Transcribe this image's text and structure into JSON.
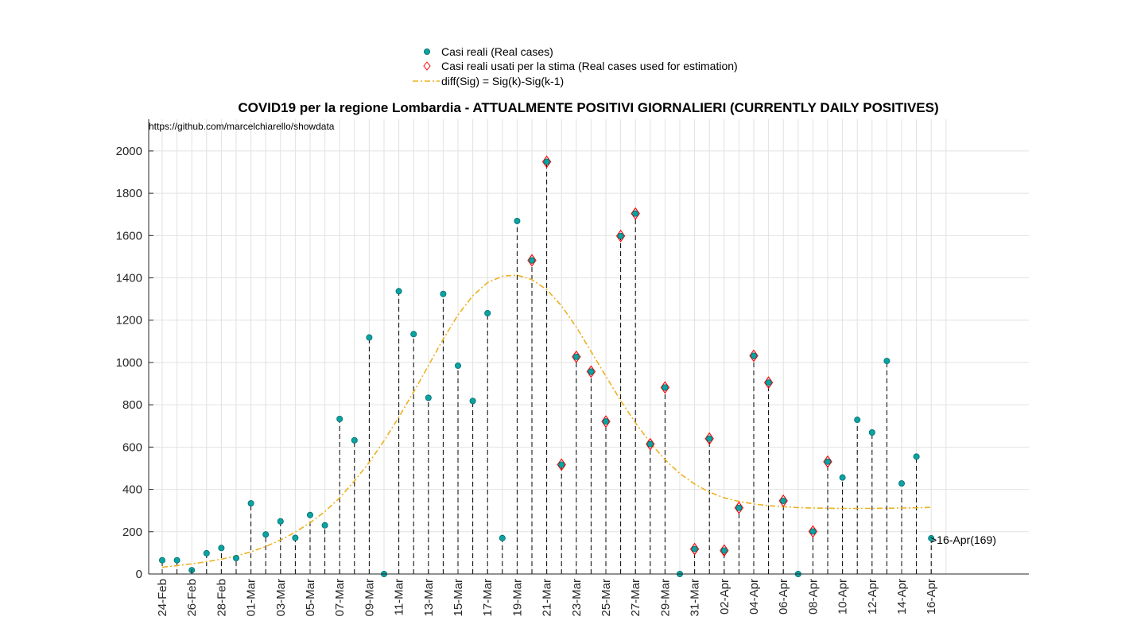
{
  "chart_data": {
    "type": "scatter",
    "title": "COVID19 per la regione Lombardia - ATTUALMENTE POSITIVI GIORNALIERI (CURRENTLY DAILY POSITIVES)",
    "source_note": "https://github.com/marcelchiarello/showdata",
    "ylim": [
      0,
      2150
    ],
    "yticks": [
      0,
      200,
      400,
      600,
      800,
      1000,
      1200,
      1400,
      1600,
      1800,
      2000
    ],
    "grid": true,
    "legend_position": "top-center",
    "legend": [
      {
        "label": "Casi reali (Real cases)",
        "marker": "dot",
        "color": "#0aa3a3"
      },
      {
        "label": "Casi reali usati per la stima (Real cases used for estimation)",
        "marker": "diamond",
        "color": "#ff0000"
      },
      {
        "label": "diff(Sig) = Sig(k)-Sig(k-1)",
        "marker": "dash-dot",
        "color": "#edb120"
      }
    ],
    "x": [
      "24-Feb",
      "25-Feb",
      "26-Feb",
      "27-Feb",
      "28-Feb",
      "29-Feb",
      "01-Mar",
      "02-Mar",
      "03-Mar",
      "04-Mar",
      "05-Mar",
      "06-Mar",
      "07-Mar",
      "08-Mar",
      "09-Mar",
      "10-Mar",
      "11-Mar",
      "12-Mar",
      "13-Mar",
      "14-Mar",
      "15-Mar",
      "16-Mar",
      "17-Mar",
      "18-Mar",
      "19-Mar",
      "20-Mar",
      "21-Mar",
      "22-Mar",
      "23-Mar",
      "24-Mar",
      "25-Mar",
      "26-Mar",
      "27-Mar",
      "28-Mar",
      "29-Mar",
      "30-Mar",
      "31-Mar",
      "01-Apr",
      "02-Apr",
      "03-Apr",
      "04-Apr",
      "05-Apr",
      "06-Apr",
      "07-Apr",
      "08-Apr",
      "09-Apr",
      "10-Apr",
      "11-Apr",
      "12-Apr",
      "13-Apr",
      "14-Apr",
      "15-Apr",
      "16-Apr"
    ],
    "xtick_labels": [
      "24-Feb",
      "26-Feb",
      "28-Feb",
      "01-Mar",
      "03-Mar",
      "05-Mar",
      "07-Mar",
      "09-Mar",
      "11-Mar",
      "13-Mar",
      "15-Mar",
      "17-Mar",
      "19-Mar",
      "21-Mar",
      "23-Mar",
      "25-Mar",
      "27-Mar",
      "29-Mar",
      "31-Mar",
      "02-Apr",
      "04-Apr",
      "06-Apr",
      "08-Apr",
      "10-Apr",
      "12-Apr",
      "14-Apr",
      "16-Apr"
    ],
    "series": [
      {
        "name": "Casi reali (Real cases)",
        "values": [
          65,
          65,
          18,
          98,
          123,
          75,
          334,
          187,
          249,
          171,
          279,
          230,
          733,
          632,
          1118,
          0,
          1337,
          1134,
          833,
          1324,
          985,
          818,
          1233,
          170,
          1669,
          1483,
          1949,
          517,
          1027,
          957,
          721,
          1598,
          1704,
          614,
          882,
          0,
          118,
          640,
          111,
          313,
          1032,
          905,
          346,
          0,
          201,
          531,
          456,
          729,
          669,
          1007,
          428,
          555,
          169
        ]
      },
      {
        "name": "Casi reali usati per la stima (Real cases used for estimation)",
        "values": [
          null,
          null,
          null,
          null,
          null,
          null,
          null,
          null,
          null,
          null,
          null,
          null,
          null,
          null,
          null,
          null,
          null,
          null,
          null,
          null,
          null,
          null,
          null,
          null,
          null,
          1483,
          1949,
          517,
          1027,
          957,
          721,
          1598,
          1704,
          614,
          882,
          null,
          118,
          640,
          111,
          313,
          1032,
          905,
          346,
          null,
          201,
          531,
          null,
          null,
          null,
          null,
          null,
          null,
          null
        ]
      },
      {
        "name": "diff(Sig) = Sig(k)-Sig(k-1)",
        "values": [
          32,
          40,
          48,
          58,
          70,
          85,
          105,
          130,
          160,
          198,
          242,
          295,
          360,
          440,
          528,
          630,
          742,
          860,
          985,
          1110,
          1225,
          1315,
          1378,
          1408,
          1413,
          1392,
          1345,
          1268,
          1168,
          1052,
          935,
          820,
          715,
          620,
          540,
          475,
          425,
          387,
          360,
          343,
          331,
          323,
          318,
          314,
          312,
          311,
          310,
          310,
          310,
          311,
          312,
          313,
          315
        ]
      }
    ],
    "annotation": ">16-Apr(169)"
  }
}
